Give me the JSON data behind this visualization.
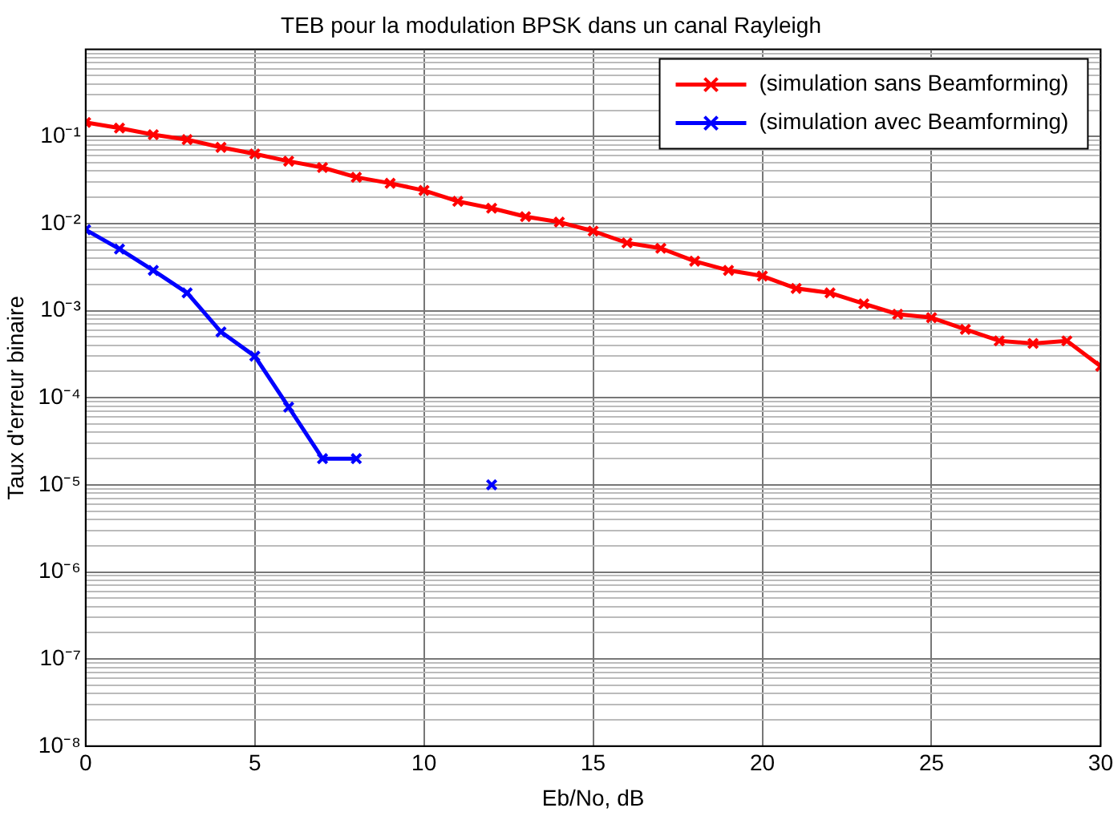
{
  "chart_data": {
    "type": "line",
    "title": "TEB pour la modulation BPSK dans un canal Rayleigh",
    "xlabel": "Eb/No, dB",
    "ylabel": "Taux d'erreur binaire",
    "x": [
      0,
      1,
      2,
      3,
      4,
      5,
      6,
      7,
      8,
      9,
      10,
      11,
      12,
      13,
      14,
      15,
      16,
      17,
      18,
      19,
      20,
      21,
      22,
      23,
      24,
      25,
      26,
      27,
      28,
      29,
      30
    ],
    "series": [
      {
        "name": "(simulation sans Beamforming)",
        "color": "#ff0000",
        "values": [
          0.145,
          0.125,
          0.105,
          0.092,
          0.075,
          0.063,
          0.052,
          0.044,
          0.034,
          0.029,
          0.024,
          0.018,
          0.015,
          0.012,
          0.0104,
          0.0082,
          0.006,
          0.0052,
          0.0037,
          0.0029,
          0.0025,
          0.0018,
          0.0016,
          0.0012,
          0.00091,
          0.00083,
          0.00061,
          0.00045,
          0.00042,
          0.00045,
          0.00023
        ]
      },
      {
        "name": "(simulation avec Beamforming)",
        "color": "#0000ff",
        "values": [
          0.0085,
          0.0051,
          0.0029,
          0.0016,
          0.00057,
          0.0003,
          7.8e-05,
          2e-05,
          2e-05,
          null,
          null,
          null,
          1e-05,
          null,
          null,
          null,
          null,
          null,
          null,
          null,
          null,
          null,
          null,
          null,
          null,
          null,
          null,
          null,
          null,
          null,
          null
        ]
      }
    ],
    "log": "y",
    "xlim": [
      0,
      30
    ],
    "xticks": [
      0,
      5,
      10,
      15,
      20,
      25,
      30
    ],
    "ylim": [
      1e-08,
      1
    ],
    "yticks": [
      {
        "value": 1e-08,
        "label": "10⁻⁸"
      },
      {
        "value": 2e-08,
        "label": null
      },
      {
        "value": 3e-08,
        "label": null
      },
      {
        "value": 4e-08,
        "label": null
      },
      {
        "value": 5e-08,
        "label": null
      },
      {
        "value": 6e-08,
        "label": null
      },
      {
        "value": 7e-08,
        "label": null
      },
      {
        "value": 8e-08,
        "label": null
      },
      {
        "value": 9e-08,
        "label": null
      },
      {
        "value": 1e-07,
        "label": "10⁻⁷"
      },
      {
        "value": 2e-07,
        "label": null
      },
      {
        "value": 3e-07,
        "label": null
      },
      {
        "value": 4e-07,
        "label": null
      },
      {
        "value": 5e-07,
        "label": null
      },
      {
        "value": 6e-07,
        "label": null
      },
      {
        "value": 7e-07,
        "label": null
      },
      {
        "value": 8e-07,
        "label": null
      },
      {
        "value": 9e-07,
        "label": null
      },
      {
        "value": 1e-06,
        "label": "10⁻⁶"
      },
      {
        "value": 2e-06,
        "label": null
      },
      {
        "value": 3e-06,
        "label": null
      },
      {
        "value": 4e-06,
        "label": null
      },
      {
        "value": 5e-06,
        "label": null
      },
      {
        "value": 6e-06,
        "label": null
      },
      {
        "value": 7e-06,
        "label": null
      },
      {
        "value": 8e-06,
        "label": null
      },
      {
        "value": 9e-06,
        "label": null
      },
      {
        "value": 1e-05,
        "label": "10⁻⁵"
      },
      {
        "value": 2e-05,
        "label": null
      },
      {
        "value": 3e-05,
        "label": null
      },
      {
        "value": 4e-05,
        "label": null
      },
      {
        "value": 5e-05,
        "label": null
      },
      {
        "value": 6e-05,
        "label": null
      },
      {
        "value": 7e-05,
        "label": null
      },
      {
        "value": 8e-05,
        "label": null
      },
      {
        "value": 9e-05,
        "label": null
      },
      {
        "value": 0.0001,
        "label": "10⁻⁴"
      },
      {
        "value": 0.0002,
        "label": null
      },
      {
        "value": 0.0003,
        "label": null
      },
      {
        "value": 0.0004,
        "label": null
      },
      {
        "value": 0.0005,
        "label": null
      },
      {
        "value": 0.0006,
        "label": null
      },
      {
        "value": 0.0007,
        "label": null
      },
      {
        "value": 0.0008,
        "label": null
      },
      {
        "value": 0.0009,
        "label": null
      },
      {
        "value": 0.001,
        "label": "10⁻³"
      },
      {
        "value": 0.002,
        "label": null
      },
      {
        "value": 0.003,
        "label": null
      },
      {
        "value": 0.004,
        "label": null
      },
      {
        "value": 0.005,
        "label": null
      },
      {
        "value": 0.006,
        "label": null
      },
      {
        "value": 0.007,
        "label": null
      },
      {
        "value": 0.008,
        "label": null
      },
      {
        "value": 0.009,
        "label": null
      },
      {
        "value": 0.01,
        "label": "10⁻²"
      },
      {
        "value": 0.02,
        "label": null
      },
      {
        "value": 0.03,
        "label": null
      },
      {
        "value": 0.04,
        "label": null
      },
      {
        "value": 0.05,
        "label": null
      },
      {
        "value": 0.06,
        "label": null
      },
      {
        "value": 0.07,
        "label": null
      },
      {
        "value": 0.08,
        "label": null
      },
      {
        "value": 0.09,
        "label": null
      },
      {
        "value": 0.1,
        "label": "10⁻¹"
      },
      {
        "value": 0.2,
        "label": null
      },
      {
        "value": 0.3,
        "label": null
      },
      {
        "value": 0.4,
        "label": null
      },
      {
        "value": 0.5,
        "label": null
      },
      {
        "value": 0.6,
        "label": null
      },
      {
        "value": 0.7,
        "label": null
      },
      {
        "value": 0.8,
        "label": null
      },
      {
        "value": 0.9,
        "label": null
      },
      {
        "value": 1,
        "label": null
      }
    ],
    "grid": true,
    "legend": "top right",
    "marker": "cross",
    "line_style": "solid"
  }
}
